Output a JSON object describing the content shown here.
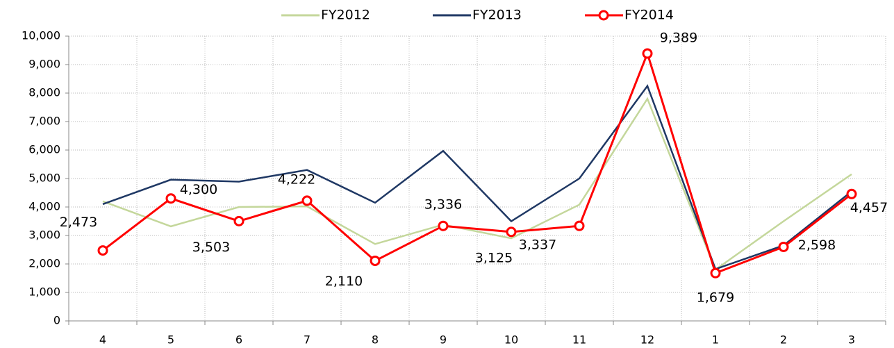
{
  "chart_data": {
    "type": "line",
    "categories": [
      "4",
      "5",
      "6",
      "7",
      "8",
      "9",
      "10",
      "11",
      "12",
      "1",
      "2",
      "3"
    ],
    "series": [
      {
        "name": "FY2012",
        "color": "#c4d79b",
        "values": [
          4200,
          3320,
          4000,
          4020,
          2700,
          3380,
          2900,
          4080,
          7800,
          1800,
          3500,
          5150
        ]
      },
      {
        "name": "FY2013",
        "color": "#1f3864",
        "values": [
          4100,
          4960,
          4890,
          5300,
          4150,
          5970,
          3500,
          5000,
          8250,
          1820,
          2650,
          4550
        ]
      },
      {
        "name": "FY2014",
        "color": "#ff0000",
        "marker": true,
        "values": [
          2473,
          4300,
          3503,
          4222,
          2110,
          3336,
          3125,
          3337,
          9389,
          1679,
          2598,
          4457
        ],
        "value_labels": [
          "2,473",
          "4,300",
          "3,503",
          "4,222",
          "2,110",
          "3,336",
          "3,125",
          "3,337",
          "9,389",
          "1,679",
          "2,598",
          "4,457"
        ]
      }
    ],
    "ylim": [
      0,
      10000
    ],
    "yticks": [
      0,
      {
        "value": 1000,
        "label": "1,000"
      },
      {
        "value": 2000,
        "label": "2,000"
      },
      {
        "value": 3000,
        "label": "3,000"
      },
      {
        "value": 4000,
        "label": "4,000"
      },
      {
        "value": 5000,
        "label": "5,000"
      },
      {
        "value": 6000,
        "label": "6,000"
      },
      {
        "value": 7000,
        "label": "7,000"
      },
      {
        "value": 8000,
        "label": "8,000"
      },
      {
        "value": 9000,
        "label": "9,000"
      },
      {
        "value": 10000,
        "label": "10,000"
      }
    ],
    "grid": true,
    "legend": "top"
  }
}
